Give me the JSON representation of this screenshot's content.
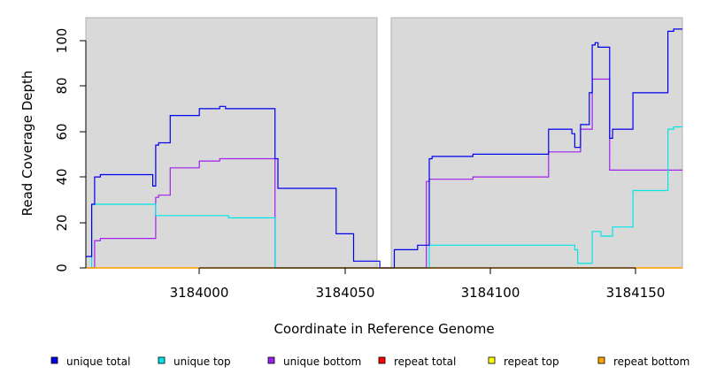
{
  "chart_data": {
    "type": "line",
    "xlabel": "Coordinate in Reference Genome",
    "ylabel": "Read Coverage Depth",
    "xlim": [
      3183961,
      3184166
    ],
    "ylim": [
      0,
      110
    ],
    "x_ticks": [
      3184000,
      3184050,
      3184100,
      3184150
    ],
    "y_ticks": [
      0,
      20,
      40,
      60,
      80,
      100
    ],
    "shaded_regions": [
      [
        3183961,
        3184061
      ],
      [
        3184066,
        3184166
      ]
    ],
    "colors": {
      "background_panel": "#d9d9d9",
      "unique_total": "#0000ee",
      "unique_top": "#00e5e5",
      "unique_bottom": "#a020f0",
      "repeat_total": "#ff0000",
      "repeat_top": "#ffff00",
      "repeat_bottom": "#ffa500"
    },
    "legend": {
      "position": "bottom",
      "entries": [
        {
          "label": "unique total",
          "color": "#0000ee"
        },
        {
          "label": "unique top",
          "color": "#00e5e5"
        },
        {
          "label": "unique bottom",
          "color": "#a020f0"
        },
        {
          "label": "repeat total",
          "color": "#ff0000"
        },
        {
          "label": "repeat top",
          "color": "#ffff00"
        },
        {
          "label": "repeat bottom",
          "color": "#ffa500"
        }
      ]
    },
    "series": [
      {
        "key": "unique_bottom",
        "name": "unique bottom",
        "color": "#a020f0",
        "step_points": [
          [
            3183961,
            0
          ],
          [
            3183964,
            0
          ],
          [
            3183964,
            12
          ],
          [
            3183966,
            12
          ],
          [
            3183966,
            13
          ],
          [
            3183985,
            13
          ],
          [
            3183985,
            31
          ],
          [
            3183986,
            31
          ],
          [
            3183986,
            32
          ],
          [
            3183990,
            32
          ],
          [
            3183990,
            44
          ],
          [
            3184000,
            44
          ],
          [
            3184000,
            47
          ],
          [
            3184007,
            47
          ],
          [
            3184007,
            48
          ],
          [
            3184026,
            48
          ],
          [
            3184026,
            0
          ],
          [
            3184078,
            0
          ],
          [
            3184078,
            38
          ],
          [
            3184079,
            38
          ],
          [
            3184079,
            39
          ],
          [
            3184094,
            39
          ],
          [
            3184094,
            40
          ],
          [
            3184120,
            40
          ],
          [
            3184120,
            51
          ],
          [
            3184131,
            51
          ],
          [
            3184131,
            61
          ],
          [
            3184135,
            61
          ],
          [
            3184135,
            83
          ],
          [
            3184141,
            83
          ],
          [
            3184141,
            43
          ],
          [
            3184166,
            43
          ]
        ]
      },
      {
        "key": "unique_top",
        "name": "unique top",
        "color": "#00e5e5",
        "step_points": [
          [
            3183961,
            0
          ],
          [
            3183963,
            0
          ],
          [
            3183963,
            28
          ],
          [
            3183985,
            28
          ],
          [
            3183985,
            23
          ],
          [
            3184010,
            23
          ],
          [
            3184010,
            22
          ],
          [
            3184026,
            22
          ],
          [
            3184026,
            0
          ],
          [
            3184079,
            0
          ],
          [
            3184079,
            10
          ],
          [
            3184129,
            10
          ],
          [
            3184129,
            8
          ],
          [
            3184130,
            8
          ],
          [
            3184130,
            2
          ],
          [
            3184135,
            2
          ],
          [
            3184135,
            16
          ],
          [
            3184138,
            16
          ],
          [
            3184138,
            14
          ],
          [
            3184142,
            14
          ],
          [
            3184142,
            18
          ],
          [
            3184149,
            18
          ],
          [
            3184149,
            34
          ],
          [
            3184161,
            34
          ],
          [
            3184161,
            61
          ],
          [
            3184163,
            61
          ],
          [
            3184163,
            62
          ],
          [
            3184166,
            62
          ]
        ]
      },
      {
        "key": "unique_total",
        "name": "unique total",
        "color": "#0000ee",
        "step_points": [
          [
            3183961,
            5
          ],
          [
            3183963,
            5
          ],
          [
            3183963,
            28
          ],
          [
            3183964,
            28
          ],
          [
            3183964,
            40
          ],
          [
            3183966,
            40
          ],
          [
            3183966,
            41
          ],
          [
            3183984,
            41
          ],
          [
            3183984,
            36
          ],
          [
            3183985,
            36
          ],
          [
            3183985,
            54
          ],
          [
            3183986,
            54
          ],
          [
            3183986,
            55
          ],
          [
            3183990,
            55
          ],
          [
            3183990,
            67
          ],
          [
            3184000,
            67
          ],
          [
            3184000,
            70
          ],
          [
            3184007,
            70
          ],
          [
            3184007,
            71
          ],
          [
            3184009,
            71
          ],
          [
            3184009,
            70
          ],
          [
            3184026,
            70
          ],
          [
            3184026,
            48
          ],
          [
            3184027,
            48
          ],
          [
            3184027,
            35
          ],
          [
            3184047,
            35
          ],
          [
            3184047,
            15
          ],
          [
            3184053,
            15
          ],
          [
            3184053,
            3
          ],
          [
            3184062,
            3
          ],
          [
            3184062,
            0
          ],
          [
            3184067,
            0
          ],
          [
            3184067,
            8
          ],
          [
            3184075,
            8
          ],
          [
            3184075,
            10
          ],
          [
            3184079,
            10
          ],
          [
            3184079,
            48
          ],
          [
            3184080,
            48
          ],
          [
            3184080,
            49
          ],
          [
            3184094,
            49
          ],
          [
            3184094,
            50
          ],
          [
            3184120,
            50
          ],
          [
            3184120,
            61
          ],
          [
            3184128,
            61
          ],
          [
            3184128,
            59
          ],
          [
            3184129,
            59
          ],
          [
            3184129,
            53
          ],
          [
            3184131,
            53
          ],
          [
            3184131,
            63
          ],
          [
            3184134,
            63
          ],
          [
            3184134,
            77
          ],
          [
            3184135,
            77
          ],
          [
            3184135,
            98
          ],
          [
            3184136,
            98
          ],
          [
            3184136,
            99
          ],
          [
            3184137,
            99
          ],
          [
            3184137,
            97
          ],
          [
            3184141,
            97
          ],
          [
            3184141,
            57
          ],
          [
            3184142,
            57
          ],
          [
            3184142,
            61
          ],
          [
            3184149,
            61
          ],
          [
            3184149,
            77
          ],
          [
            3184161,
            77
          ],
          [
            3184161,
            104
          ],
          [
            3184163,
            104
          ],
          [
            3184163,
            105
          ],
          [
            3184166,
            105
          ]
        ]
      },
      {
        "key": "repeat_total",
        "name": "repeat total",
        "color": "#ff0000",
        "step_points": [
          [
            3183961,
            0
          ],
          [
            3184166,
            0
          ]
        ]
      },
      {
        "key": "repeat_top",
        "name": "repeat top",
        "color": "#ffff00",
        "step_points": [
          [
            3183961,
            0
          ],
          [
            3184166,
            0
          ]
        ]
      },
      {
        "key": "repeat_bottom",
        "name": "repeat bottom",
        "color": "#ffa500",
        "step_points": [
          [
            3183961,
            0
          ],
          [
            3184166,
            0
          ]
        ]
      }
    ]
  }
}
